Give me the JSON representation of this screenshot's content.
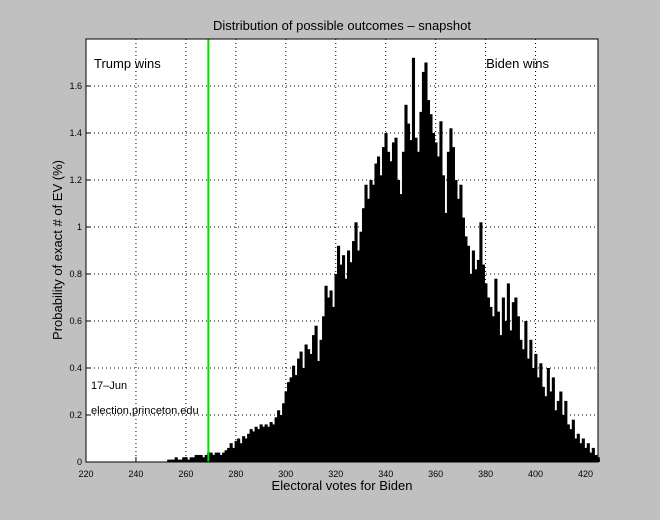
{
  "chart_data": {
    "type": "bar",
    "title": "Distribution of possible outcomes – snapshot",
    "xlabel": "Electoral votes for Biden",
    "ylabel": "Probability of exact # of EV (%)",
    "xlim": [
      220,
      425
    ],
    "ylim": [
      0,
      1.8
    ],
    "xticks": [
      220,
      240,
      260,
      280,
      300,
      320,
      340,
      360,
      380,
      400,
      420
    ],
    "yticks": [
      0,
      0.2,
      0.4,
      0.6,
      0.8,
      1,
      1.2,
      1.4,
      1.6
    ],
    "grid": "dotted",
    "bar_color": "#000000",
    "threshold_line": {
      "x": 269,
      "color": "#00e000"
    },
    "annotations": {
      "left": "Trump wins",
      "right": "Biden wins",
      "date": "17–Jun",
      "source": "election.princeton.edu"
    },
    "x_start": 253,
    "values": [
      0.01,
      0.01,
      0.01,
      0.02,
      0.01,
      0.01,
      0.02,
      0.02,
      0.01,
      0.02,
      0.02,
      0.03,
      0.03,
      0.03,
      0.02,
      0.03,
      0.04,
      0.04,
      0.03,
      0.04,
      0.04,
      0.03,
      0.04,
      0.05,
      0.06,
      0.08,
      0.06,
      0.09,
      0.1,
      0.08,
      0.11,
      0.1,
      0.12,
      0.14,
      0.13,
      0.15,
      0.14,
      0.16,
      0.15,
      0.16,
      0.15,
      0.17,
      0.16,
      0.19,
      0.22,
      0.2,
      0.25,
      0.3,
      0.34,
      0.36,
      0.41,
      0.37,
      0.44,
      0.47,
      0.4,
      0.5,
      0.48,
      0.46,
      0.54,
      0.58,
      0.43,
      0.52,
      0.62,
      0.75,
      0.7,
      0.73,
      0.66,
      0.8,
      0.92,
      0.84,
      0.88,
      0.78,
      0.9,
      0.85,
      0.94,
      1.02,
      0.9,
      0.98,
      1.08,
      1.18,
      1.12,
      1.2,
      1.18,
      1.27,
      1.3,
      1.22,
      1.34,
      1.4,
      1.32,
      1.28,
      1.36,
      1.38,
      1.2,
      1.14,
      1.32,
      1.52,
      1.44,
      1.37,
      1.72,
      1.38,
      1.32,
      1.49,
      1.66,
      1.7,
      1.54,
      1.48,
      1.4,
      1.36,
      1.3,
      1.45,
      1.22,
      1.06,
      1.32,
      1.42,
      1.34,
      1.2,
      1.12,
      1.18,
      1.04,
      0.96,
      0.92,
      0.8,
      0.9,
      0.82,
      0.86,
      1.02,
      0.84,
      0.76,
      0.7,
      0.66,
      0.62,
      0.78,
      0.64,
      0.54,
      0.7,
      0.6,
      0.76,
      0.56,
      0.68,
      0.7,
      0.62,
      0.52,
      0.48,
      0.6,
      0.44,
      0.52,
      0.4,
      0.46,
      0.36,
      0.42,
      0.32,
      0.28,
      0.4,
      0.3,
      0.36,
      0.22,
      0.26,
      0.3,
      0.2,
      0.26,
      0.16,
      0.14,
      0.18,
      0.1,
      0.12,
      0.08,
      0.1,
      0.06,
      0.08,
      0.04,
      0.06,
      0.03,
      0.02
    ]
  }
}
